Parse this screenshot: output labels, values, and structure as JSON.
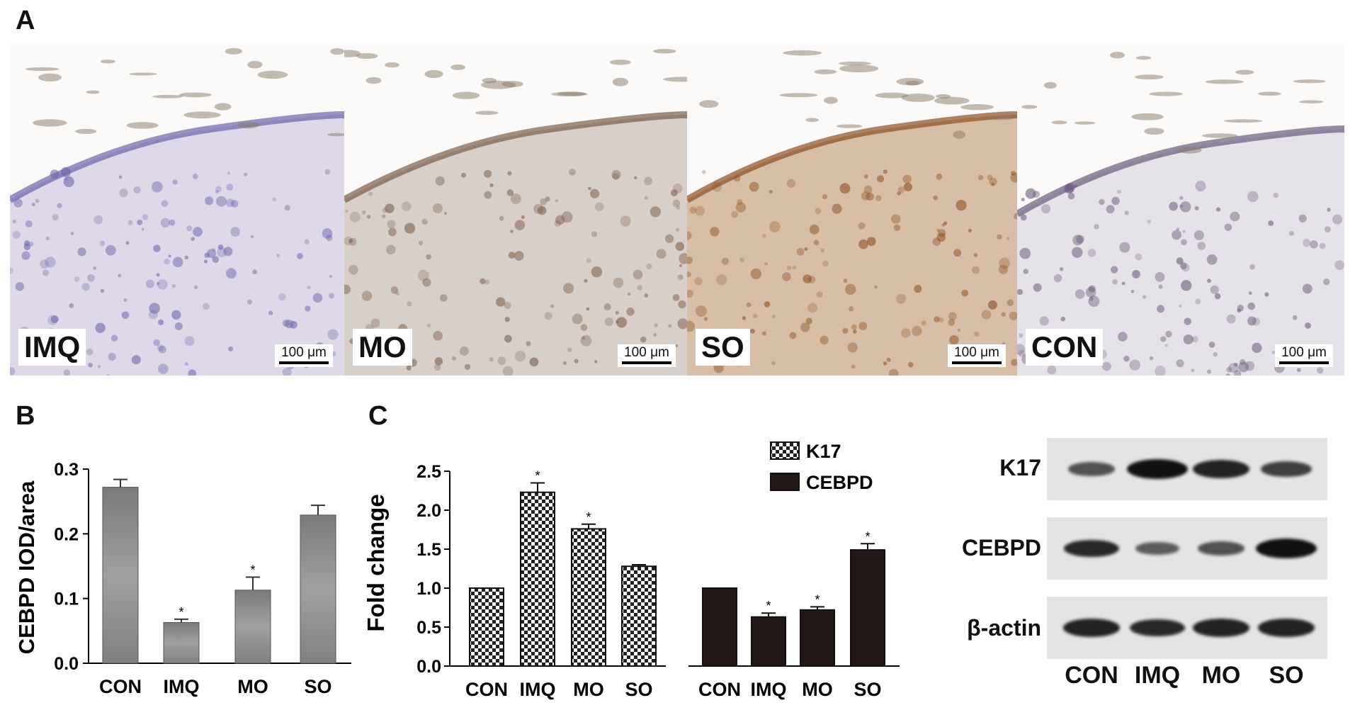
{
  "panel_letters": {
    "a": "A",
    "b": "B",
    "c": "C"
  },
  "micrographs": [
    {
      "label": "IMQ",
      "scale": "100 μm",
      "bg": "#ded8e8",
      "tint": "#6b64a8"
    },
    {
      "label": "MO",
      "scale": "100 μm",
      "bg": "#d8cfc8",
      "tint": "#7a5c48"
    },
    {
      "label": "SO",
      "scale": "100 μm",
      "bg": "#d6bfa6",
      "tint": "#8a4e22"
    },
    {
      "label": "CON",
      "scale": "100 μm",
      "bg": "#e6e2ea",
      "tint": "#6a5a7a"
    }
  ],
  "chart_data": [
    {
      "type": "bar",
      "ylabel": "CEBPD IOD/area",
      "categories": [
        "CON",
        "IMQ",
        "MO",
        "SO"
      ],
      "values": [
        0.272,
        0.063,
        0.113,
        0.229
      ],
      "errors": [
        0.012,
        0.005,
        0.02,
        0.015
      ],
      "significant": [
        false,
        true,
        true,
        false
      ],
      "ylim": [
        0.0,
        0.3
      ],
      "yticks": [
        "0.0",
        "0.1",
        "0.2",
        "0.3"
      ],
      "bar_color": "#8a8a8a"
    },
    {
      "type": "bar",
      "ylabel": "Fold change",
      "categories": [
        "CON",
        "IMQ",
        "MO",
        "SO"
      ],
      "series": [
        {
          "name": "K17",
          "values": [
            1.0,
            2.23,
            1.76,
            1.28
          ],
          "errors": [
            0.0,
            0.12,
            0.06,
            0.02
          ],
          "significant": [
            false,
            true,
            true,
            false
          ],
          "pattern": "checker"
        },
        {
          "name": "CEBPD",
          "values": [
            1.0,
            0.63,
            0.72,
            1.49
          ],
          "errors": [
            0.0,
            0.05,
            0.04,
            0.08
          ],
          "significant": [
            false,
            true,
            true,
            true
          ],
          "pattern": "solid",
          "color": "#231815"
        }
      ],
      "ylim": [
        0.0,
        2.5
      ],
      "yticks": [
        "0.0",
        "0.5",
        "1.0",
        "1.5",
        "2.0",
        "2.5"
      ],
      "significance_marker": "*"
    }
  ],
  "western_blot": {
    "rows": [
      "K17",
      "CEBPD",
      "β-actin"
    ],
    "lanes": [
      "CON",
      "IMQ",
      "MO",
      "SO"
    ],
    "intensity": [
      [
        0.45,
        1.0,
        0.85,
        0.6
      ],
      [
        0.8,
        0.35,
        0.45,
        1.0
      ],
      [
        0.85,
        0.8,
        0.85,
        0.85
      ]
    ]
  }
}
